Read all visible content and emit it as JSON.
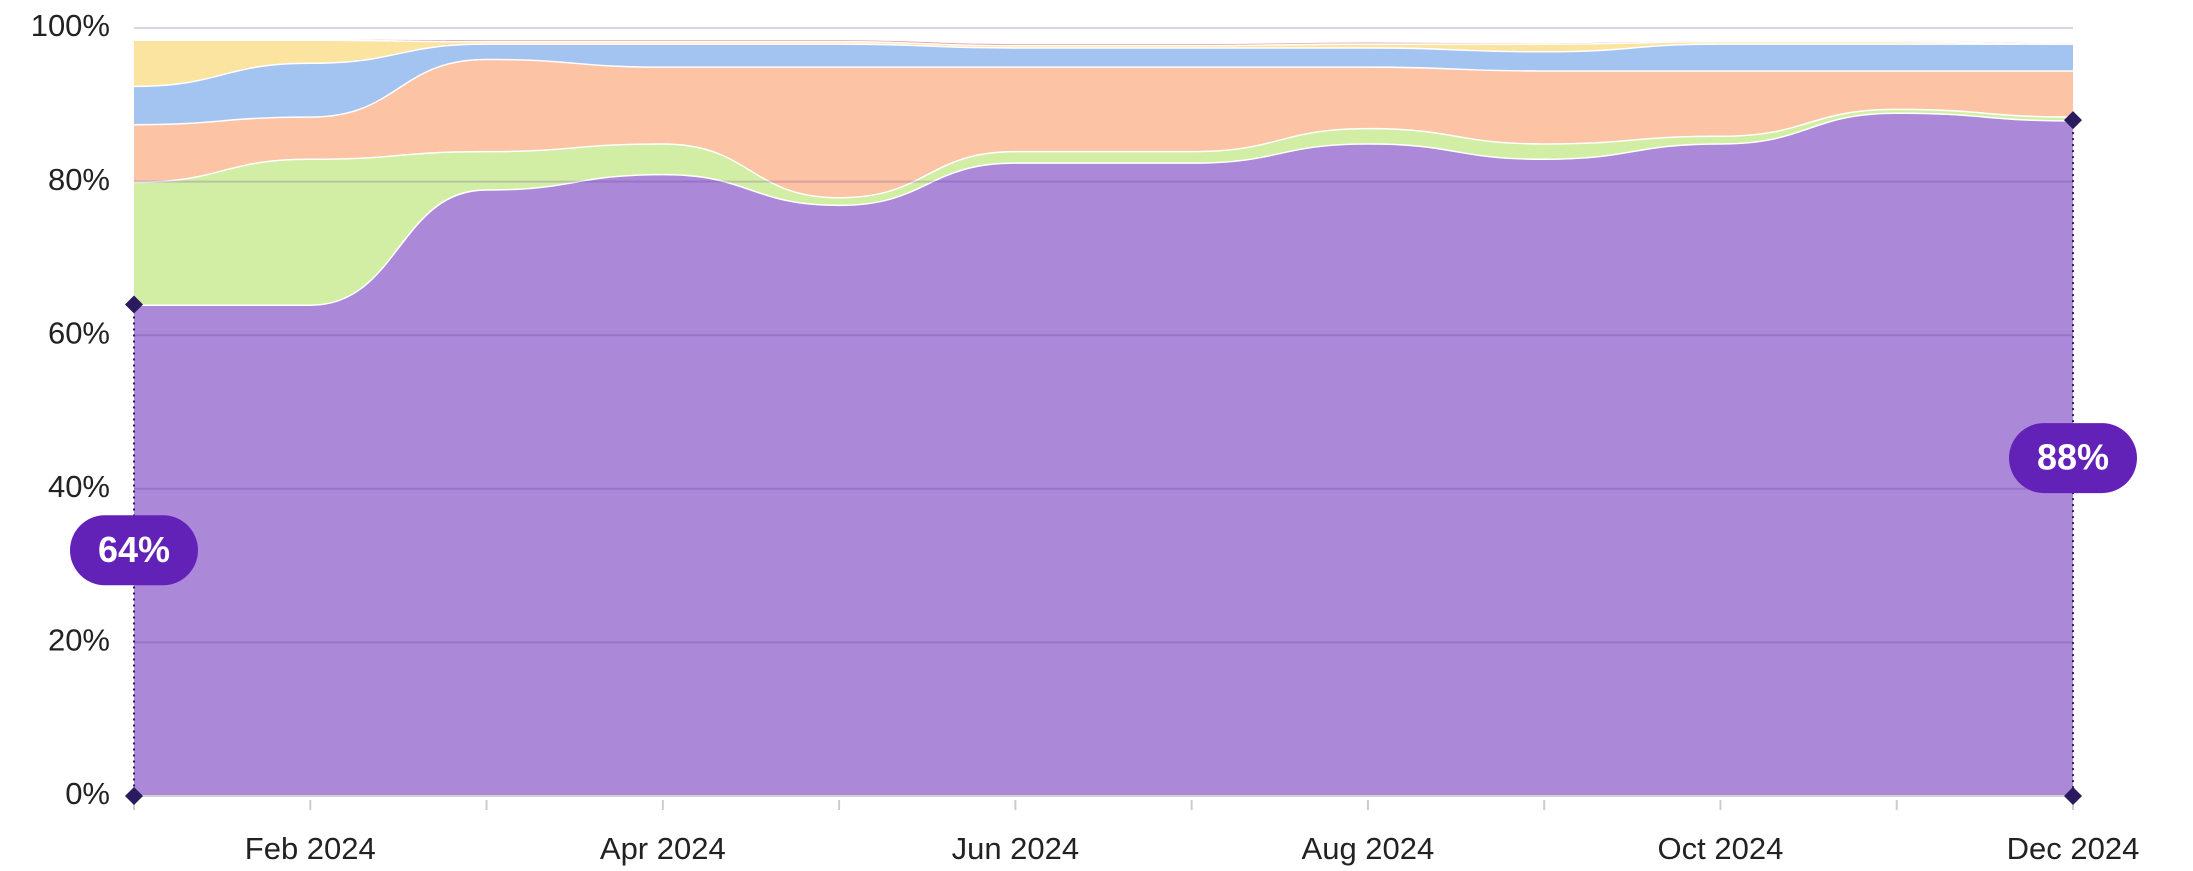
{
  "chart_data": {
    "type": "stacked_area",
    "categories": [
      null,
      "Feb 2024",
      null,
      "Apr 2024",
      null,
      "Jun 2024",
      null,
      "Aug 2024",
      null,
      "Oct 2024",
      null,
      "Dec 2024"
    ],
    "series": [
      {
        "color": "#ab88d8",
        "values": [
          64,
          64,
          79,
          81,
          77,
          82.5,
          82.5,
          85,
          83,
          85,
          89,
          88
        ],
        "value_labels": [
          "64%",
          null,
          null,
          null,
          null,
          null,
          null,
          null,
          null,
          null,
          null,
          "88%"
        ]
      },
      {
        "color": "#d2eea4",
        "values": [
          16,
          19,
          5,
          4,
          1,
          1.5,
          1.5,
          2,
          2,
          1,
          0.5,
          0.5
        ]
      },
      {
        "color": "#fcc3a4",
        "values": [
          7.5,
          5.5,
          12,
          10,
          17,
          11,
          11,
          8,
          9.5,
          8.5,
          5,
          6
        ]
      },
      {
        "color": "#a3c4f0",
        "values": [
          5,
          7,
          2,
          3,
          3,
          2.5,
          2.5,
          2.5,
          2.5,
          3.5,
          3.5,
          3.5
        ]
      },
      {
        "color": "#fbe3a0",
        "values": [
          6,
          3,
          0.3,
          0.3,
          0.3,
          0.3,
          0.3,
          0.5,
          1,
          0.3,
          0.3,
          0
        ]
      },
      {
        "color": "#e8a0a8",
        "values": [
          0.2,
          0.2,
          0.3,
          0.3,
          0.3,
          0.3,
          0.3,
          0.3,
          0.2,
          0.2,
          0.2,
          0.2
        ]
      }
    ],
    "ylim": [
      0,
      100
    ],
    "yticks": [
      {
        "value": 0,
        "label": "0%"
      },
      {
        "value": 20,
        "label": "20%"
      },
      {
        "value": 40,
        "label": "40%"
      },
      {
        "value": 60,
        "label": "60%"
      },
      {
        "value": 80,
        "label": "80%"
      },
      {
        "value": 100,
        "label": "100%"
      }
    ],
    "grid": true
  }
}
